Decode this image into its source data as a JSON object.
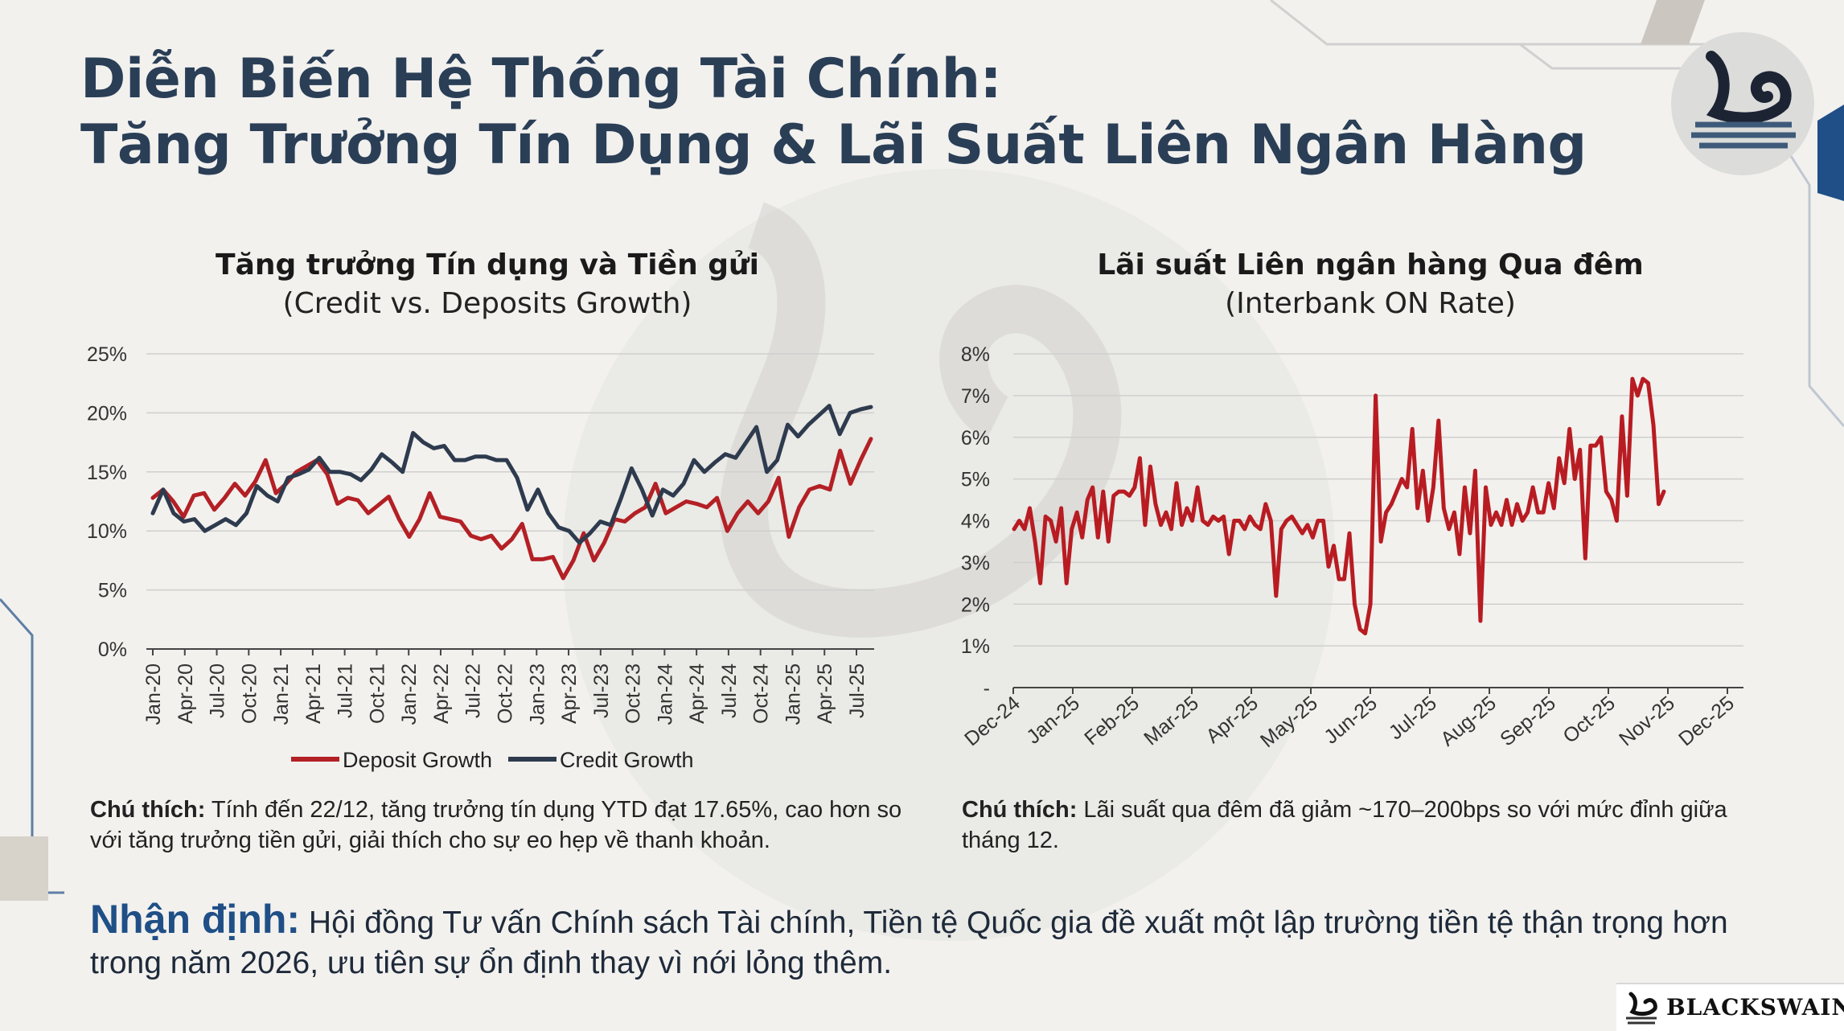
{
  "page": {
    "title_line1": "Diễn Biến Hệ Thống Tài Chính:",
    "title_line2": "Tăng Trưởng Tín Dụng & Lãi Suất Liên Ngân Hàng",
    "brand": "BLACKSWAIN",
    "left_note_label": "Chú thích:",
    "left_note_text": " Tính đến 22/12, tăng trưởng tín dụng YTD đạt 17.65%, cao hơn so với tăng trưởng tiền gửi, giải thích cho sự eo hẹp về thanh khoản.",
    "right_note_label": "Chú thích:",
    "right_note_text": " Lãi suất qua đêm đã giảm ~170–200bps so với mức đỉnh giữa tháng 12.",
    "verdict_label": "Nhận định:",
    "verdict_text": " Hội đồng Tư vấn Chính sách Tài chính, Tiền tệ Quốc gia đề xuất một lập trường tiền tệ thận trọng hơn trong năm 2026, ưu tiên sự ổn định thay vì nới lỏng thêm."
  },
  "colors": {
    "title": "#2a3e56",
    "deposit": "#b32025",
    "credit": "#2e3b4e",
    "interbank": "#b81c22",
    "verdict_label": "#1f4f86",
    "grid": "#cfcfcf"
  },
  "chart_data": [
    {
      "type": "line",
      "title": "Tăng trưởng Tín dụng và Tiền gửi",
      "subtitle": "(Credit vs. Deposits Growth)",
      "ylim": [
        0,
        25
      ],
      "yticks": [
        "0%",
        "5%",
        "10%",
        "15%",
        "20%",
        "25%"
      ],
      "yvalues": [
        0,
        5,
        10,
        15,
        20,
        25
      ],
      "xtick_labels": [
        "Jan-20",
        "Apr-20",
        "Jul-20",
        "Oct-20",
        "Jan-21",
        "Apr-21",
        "Jul-21",
        "Oct-21",
        "Jan-22",
        "Apr-22",
        "Jul-22",
        "Oct-22",
        "Jan-23",
        "Apr-23",
        "Jul-23",
        "Oct-23",
        "Jan-24",
        "Apr-24",
        "Jul-24",
        "Oct-24",
        "Jan-25",
        "Apr-25",
        "Jul-25"
      ],
      "legend": "bottom",
      "grid": true,
      "series": [
        {
          "name": "Deposit Growth",
          "color": "#b32025",
          "values": [
            12.8,
            13.5,
            12.5,
            11.2,
            13.0,
            13.2,
            11.8,
            12.8,
            14.0,
            13.0,
            14.2,
            16.0,
            13.2,
            14.0,
            15.0,
            15.5,
            16.0,
            14.8,
            12.3,
            12.8,
            12.6,
            11.5,
            12.2,
            12.9,
            11.0,
            9.5,
            11.0,
            13.2,
            11.2,
            11.0,
            10.8,
            9.6,
            9.3,
            9.6,
            8.5,
            9.3,
            10.6,
            7.6,
            7.6,
            7.8,
            6.0,
            7.5,
            9.8,
            7.5,
            9.0,
            11.0,
            10.8,
            11.5,
            12.0,
            14.0,
            11.5,
            12.0,
            12.5,
            12.3,
            12.0,
            12.8,
            10.0,
            11.5,
            12.5,
            11.5,
            12.5,
            14.5,
            9.5,
            12.0,
            13.5,
            13.8,
            13.5,
            16.8,
            14.0,
            16.0,
            17.8
          ]
        },
        {
          "name": "Credit Growth",
          "color": "#2e3b4e",
          "values": [
            11.5,
            13.5,
            11.5,
            10.8,
            11.0,
            10.0,
            10.5,
            11.0,
            10.5,
            11.5,
            13.8,
            13.0,
            12.5,
            14.5,
            14.8,
            15.2,
            16.2,
            15.0,
            15.0,
            14.8,
            14.3,
            15.2,
            16.5,
            15.8,
            15.0,
            18.3,
            17.5,
            17.0,
            17.2,
            16.0,
            16.0,
            16.3,
            16.3,
            16.0,
            16.0,
            14.5,
            11.8,
            13.5,
            11.5,
            10.3,
            10.0,
            9.0,
            9.8,
            10.8,
            10.5,
            12.8,
            15.3,
            13.5,
            11.3,
            13.5,
            13.0,
            14.0,
            16.0,
            15.0,
            15.8,
            16.5,
            16.2,
            17.5,
            18.8,
            15.0,
            16.0,
            19.0,
            18.0,
            19.0,
            19.8,
            20.6,
            18.2,
            20.0,
            20.3,
            20.5
          ]
        }
      ]
    },
    {
      "type": "line",
      "title": "Lãi suất Liên ngân hàng Qua đêm",
      "subtitle": "(Interbank ON Rate)",
      "ylim": [
        0,
        8
      ],
      "yticks": [
        "-",
        "1%",
        "2%",
        "3%",
        "4%",
        "5%",
        "6%",
        "7%",
        "8%"
      ],
      "yvalues": [
        0,
        1,
        2,
        3,
        4,
        5,
        6,
        7,
        8
      ],
      "xtick_labels": [
        "Dec-24",
        "Jan-25",
        "Feb-25",
        "Mar-25",
        "Apr-25",
        "May-25",
        "Jun-25",
        "Jul-25",
        "Aug-25",
        "Sep-25",
        "Oct-25",
        "Nov-25",
        "Dec-25"
      ],
      "grid": true,
      "series": [
        {
          "name": "",
          "color": "#b81c22",
          "values": [
            3.8,
            4.0,
            3.8,
            4.3,
            3.5,
            2.5,
            4.1,
            4.0,
            3.5,
            4.3,
            2.5,
            3.8,
            4.2,
            3.6,
            4.5,
            4.8,
            3.6,
            4.7,
            3.5,
            4.6,
            4.7,
            4.7,
            4.6,
            4.8,
            5.5,
            3.9,
            5.3,
            4.4,
            3.9,
            4.2,
            3.8,
            4.9,
            3.9,
            4.3,
            4.0,
            4.8,
            4.0,
            3.9,
            4.1,
            4.0,
            4.1,
            3.2,
            4.0,
            4.0,
            3.8,
            4.1,
            3.9,
            3.8,
            4.4,
            4.0,
            2.2,
            3.8,
            4.0,
            4.1,
            3.9,
            3.7,
            3.9,
            3.6,
            4.0,
            4.0,
            2.9,
            3.4,
            2.6,
            2.6,
            3.7,
            2.0,
            1.4,
            1.3,
            2.0,
            7.0,
            3.5,
            4.2,
            4.4,
            4.7,
            5.0,
            4.8,
            6.2,
            4.3,
            5.2,
            4.0,
            4.8,
            6.4,
            4.3,
            3.8,
            4.2,
            3.2,
            4.8,
            3.7,
            5.2,
            1.6,
            4.8,
            3.9,
            4.2,
            3.9,
            4.5,
            3.9,
            4.4,
            4.0,
            4.2,
            4.8,
            4.2,
            4.2,
            4.9,
            4.3,
            5.5,
            4.9,
            6.2,
            5.0,
            5.7,
            3.1,
            5.8,
            5.8,
            6.0,
            4.7,
            4.5,
            4.0,
            6.5,
            4.6,
            7.4,
            7.0,
            7.4,
            7.3,
            6.3,
            4.4,
            4.7
          ]
        }
      ]
    }
  ]
}
